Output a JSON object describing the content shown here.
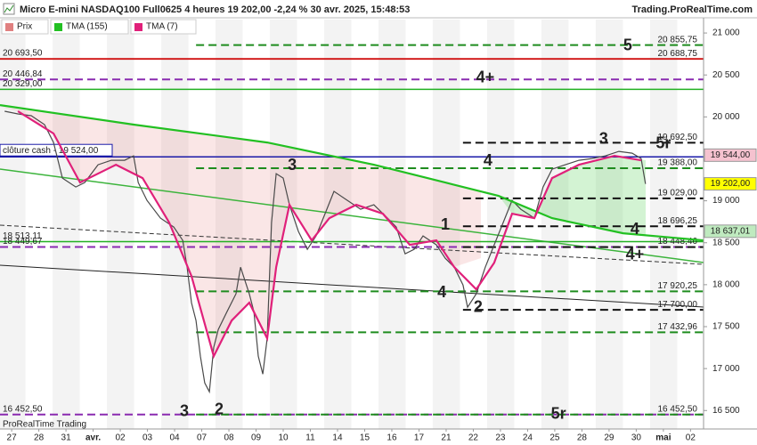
{
  "chart_data": {
    "type": "line",
    "title": "Micro E-mini NASDAQ100 Full0625 4 heures 19 202,00 -2,24 % 30 avr. 2025, 15:48:53",
    "site": "Trading.ProRealTime.com",
    "footer": "ProRealTime Trading",
    "xlim": [
      -0.43,
      25.48
    ],
    "ylim": [
      16280,
      21160
    ],
    "grid": true,
    "xticks": [
      {
        "value": 0,
        "label": "27"
      },
      {
        "value": 1,
        "label": "28"
      },
      {
        "value": 2,
        "label": "31"
      },
      {
        "value": 3,
        "label": "avr."
      },
      {
        "value": 4,
        "label": "02"
      },
      {
        "value": 5,
        "label": "03"
      },
      {
        "value": 6,
        "label": "04"
      },
      {
        "value": 7,
        "label": "07"
      },
      {
        "value": 8,
        "label": "08"
      },
      {
        "value": 9,
        "label": "09"
      },
      {
        "value": 10,
        "label": "10"
      },
      {
        "value": 11,
        "label": "11"
      },
      {
        "value": 12,
        "label": "14"
      },
      {
        "value": 13,
        "label": "15"
      },
      {
        "value": 14,
        "label": "16"
      },
      {
        "value": 15,
        "label": "17"
      },
      {
        "value": 16,
        "label": "21"
      },
      {
        "value": 17,
        "label": "22"
      },
      {
        "value": 18,
        "label": "23"
      },
      {
        "value": 19,
        "label": "24"
      },
      {
        "value": 20,
        "label": "25"
      },
      {
        "value": 21,
        "label": "28"
      },
      {
        "value": 22,
        "label": "29"
      },
      {
        "value": 23,
        "label": "30"
      },
      {
        "value": 24,
        "label": "mai"
      },
      {
        "value": 25,
        "label": "02"
      }
    ],
    "yticks": [
      {
        "value": 16500,
        "label": "16 500"
      },
      {
        "value": 17000,
        "label": "17 000"
      },
      {
        "value": 17500,
        "label": "17 500"
      },
      {
        "value": 18000,
        "label": "18 000"
      },
      {
        "value": 18500,
        "label": "18 500"
      },
      {
        "value": 19000,
        "label": "19 000"
      },
      {
        "value": 19500,
        "label": "19 500"
      },
      {
        "value": 20000,
        "label": "20 000"
      },
      {
        "value": 20500,
        "label": "20 500"
      },
      {
        "value": 21000,
        "label": "21 000"
      }
    ],
    "series": [
      {
        "name": "Prix",
        "color": "#4a4a4a",
        "x": [
          -0.26,
          0.23,
          0.72,
          1.21,
          1.54,
          1.87,
          2.36,
          2.69,
          3.18,
          3.67,
          4.16,
          4.49,
          4.66,
          4.98,
          5.48,
          5.97,
          6.3,
          6.46,
          6.62,
          6.79,
          6.95,
          7.11,
          7.28,
          7.44,
          7.61,
          7.93,
          8.26,
          8.43,
          8.75,
          8.92,
          9.08,
          9.25,
          9.41,
          9.57,
          9.74,
          10.0,
          10.23,
          10.56,
          10.89,
          11.21,
          11.54,
          11.87,
          12.36,
          12.85,
          13.34,
          13.84,
          14.16,
          14.49,
          14.82,
          15.15,
          15.64,
          15.97,
          16.3,
          16.62,
          16.79,
          17.11,
          17.44,
          17.77,
          18.1,
          18.43,
          18.75,
          19.25,
          19.57,
          19.9,
          20.39,
          20.89,
          21.38,
          21.87,
          22.36,
          22.85,
          23.18,
          23.34
        ],
        "values": [
          20067,
          20035,
          20014,
          19908,
          19695,
          19271,
          19165,
          19218,
          19430,
          19483,
          19483,
          19536,
          19218,
          19005,
          18793,
          18687,
          18528,
          18209,
          17785,
          17572,
          17148,
          16829,
          16723,
          17254,
          17466,
          17678,
          17891,
          18209,
          17891,
          17678,
          17148,
          16935,
          17360,
          18740,
          19324,
          19271,
          18952,
          18634,
          18421,
          18581,
          18846,
          19112,
          19005,
          18899,
          18952,
          18793,
          18687,
          18368,
          18421,
          18581,
          18475,
          18315,
          18209,
          17997,
          17731,
          17891,
          18209,
          18475,
          18740,
          19005,
          18899,
          18793,
          19165,
          19377,
          19430,
          19483,
          19504,
          19536,
          19589,
          19568,
          19504,
          19202
        ]
      },
      {
        "name": "TMA (155)",
        "color": "#22c022",
        "x": [
          -0.43,
          4.49,
          9.41,
          13.34,
          15.97,
          17.93,
          19.9,
          22.52,
          25.48
        ],
        "values": [
          20141,
          19908,
          19695,
          19430,
          19218,
          19058,
          18793,
          18613,
          18528
        ]
      },
      {
        "name": "TMA (7)",
        "color": "#e0207a",
        "x": [
          0.23,
          1.54,
          2.52,
          3.84,
          4.82,
          5.8,
          6.62,
          7.44,
          8.1,
          8.75,
          9.41,
          9.74,
          10.23,
          11.05,
          11.7,
          12.69,
          13.67,
          14.66,
          15.64,
          16.3,
          17.11,
          17.77,
          18.43,
          19.25,
          19.9,
          20.89,
          22.2,
          23.18
        ],
        "values": [
          20067,
          19802,
          19218,
          19430,
          19271,
          18740,
          18103,
          17148,
          17572,
          17785,
          17360,
          18209,
          18952,
          18528,
          18793,
          18952,
          18846,
          18475,
          18528,
          18209,
          17944,
          18262,
          18846,
          18793,
          19271,
          19430,
          19536,
          19483
        ]
      }
    ],
    "levels": [
      {
        "value": 20855.75,
        "label": "20 855,75",
        "color": "#1e8c1e",
        "style": "dashed",
        "from": 6.79,
        "side": "right"
      },
      {
        "value": 20688.75,
        "label": "20 688,75",
        "color": "#d01010",
        "style": "solid",
        "side": "right"
      },
      {
        "value": 20693.5,
        "label": "20 693,50",
        "color": "#d01010",
        "style": "solid",
        "side": "left"
      },
      {
        "value": 20446.84,
        "label": "20 446,84",
        "color": "#8a2bb0",
        "style": "dashed",
        "side": "left"
      },
      {
        "value": 20329,
        "label": "20 329,00",
        "color": "#22b022",
        "style": "solid",
        "side": "left"
      },
      {
        "value": 19692.5,
        "label": "19 692,50",
        "color": "#111111",
        "style": "dashed",
        "from": 16.62,
        "side": "right"
      },
      {
        "value": 19388,
        "label": "19 388,00",
        "color": "#1e8c1e",
        "style": "dashed",
        "from": 6.79,
        "side": "right"
      },
      {
        "value": 19029,
        "label": "19 029,00",
        "color": "#111111",
        "style": "dashed",
        "from": 16.62,
        "side": "right"
      },
      {
        "value": 18696.25,
        "label": "18 696,25",
        "color": "#111111",
        "style": "dashed",
        "from": 16.62,
        "side": "right"
      },
      {
        "value": 18513.11,
        "label": "18 513,11",
        "color": "#22b022",
        "style": "solid",
        "side": "left"
      },
      {
        "value": 18449.67,
        "label": "18 449,67",
        "color": "#8a2bb0",
        "style": "dashed",
        "side": "left"
      },
      {
        "value": 18448.46,
        "label": "18 448,46",
        "color": "#111111",
        "style": "dashed",
        "from": 16.62,
        "side": "right"
      },
      {
        "value": 17920.25,
        "label": "17 920,25",
        "color": "#1e8c1e",
        "style": "dashed",
        "from": 6.79,
        "side": "right"
      },
      {
        "value": 17700,
        "label": "17 700,00",
        "color": "#111111",
        "style": "dashed",
        "from": 16.62,
        "side": "right"
      },
      {
        "value": 17432.96,
        "label": "17 432,96",
        "color": "#1e8c1e",
        "style": "dashed",
        "from": 6.79,
        "side": "right"
      },
      {
        "value": 16452.5,
        "label": "16 452,50",
        "color": "#8a2bb0",
        "style": "dashed",
        "side": "left"
      },
      {
        "value": 16452.5,
        "label": "16 452,50",
        "color": "#1e8c1e",
        "style": "dashed",
        "from": 6.79,
        "side": "right"
      }
    ],
    "cash_close": {
      "value": 19524,
      "label": "clôture cash -  19 524,00",
      "color": "#1a1aa8"
    },
    "price_tags": [
      {
        "value": 19544,
        "label": "19 544,00",
        "color": "#f5c2cf"
      },
      {
        "value": 19202,
        "label": "19 202,00",
        "color": "#ffff00"
      },
      {
        "value": 18637.01,
        "label": "18 637,01",
        "color": "#bfeabf"
      }
    ],
    "annotations": [
      {
        "text": "5",
        "x": 22.69,
        "y": 20842,
        "color": "#1e8c1e"
      },
      {
        "text": "4+",
        "x": 17.44,
        "y": 20460,
        "color": "#8a2bb0"
      },
      {
        "text": "3",
        "x": 10.33,
        "y": 19420,
        "color": "#1e8c1e"
      },
      {
        "text": "4",
        "x": 17.54,
        "y": 19473,
        "color": "#8a2bb0"
      },
      {
        "text": "3",
        "x": 21.8,
        "y": 19728,
        "color": "#111111"
      },
      {
        "text": "5r",
        "x": 24.0,
        "y": 19675,
        "color": "#111111"
      },
      {
        "text": "1",
        "x": 15.97,
        "y": 18709,
        "color": "#111111"
      },
      {
        "text": "4",
        "x": 22.95,
        "y": 18656,
        "color": "#111111"
      },
      {
        "text": "4+",
        "x": 22.95,
        "y": 18349,
        "color": "#111111"
      },
      {
        "text": "4",
        "x": 15.84,
        "y": 17903,
        "color": "#1e8c1e"
      },
      {
        "text": "2",
        "x": 17.18,
        "y": 17723,
        "color": "#111111"
      },
      {
        "text": "3",
        "x": 6.36,
        "y": 16482,
        "color": "#8a2bb0"
      },
      {
        "text": "2",
        "x": 7.64,
        "y": 16503,
        "color": "#1e8c1e"
      },
      {
        "text": "5r",
        "x": 20.14,
        "y": 16450,
        "color": "#8a2bb0"
      }
    ]
  }
}
